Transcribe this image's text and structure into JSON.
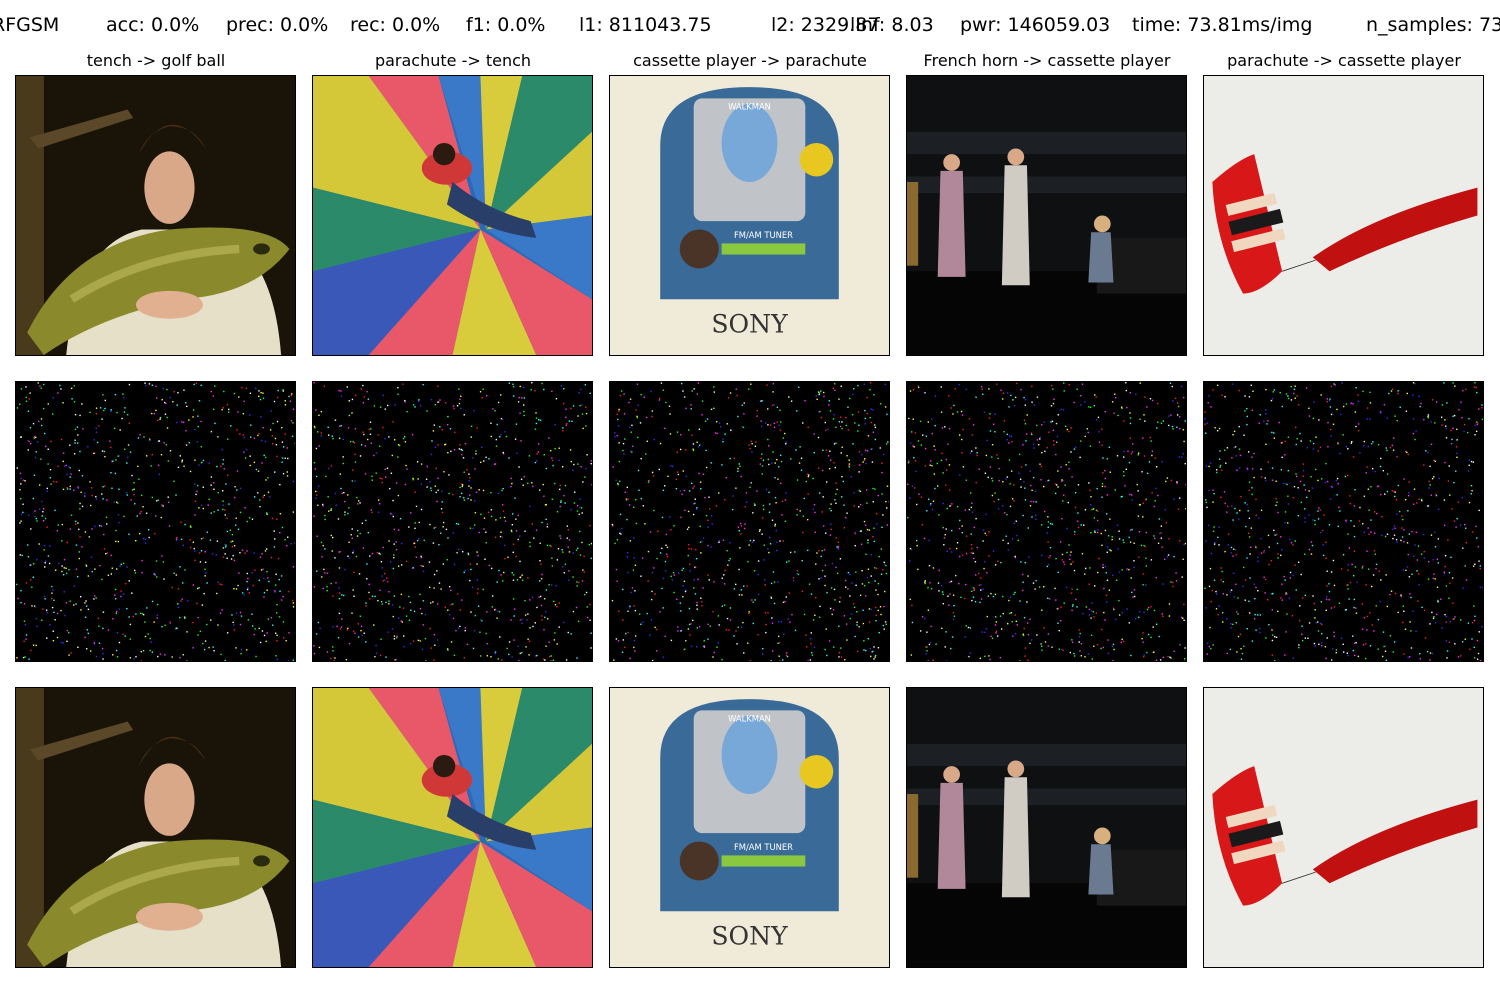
{
  "header": {
    "attack": "RFGSM",
    "acc": "acc: 0.0%",
    "prec": "prec: 0.0%",
    "rec": "rec: 0.0%",
    "f1": "f1: 0.0%",
    "l1": "l1: 811043.75",
    "l2": "l2: 2329.87",
    "linf": "lInf: 8.03",
    "pwr": "pwr: 146059.03",
    "time": "time: 73.81ms/img",
    "n_samples": "n_samples: 73"
  },
  "columns": [
    {
      "title": "tench -> golf ball",
      "subject": "man-holding-tench-fish"
    },
    {
      "title": "parachute -> tench",
      "subject": "boy-on-striped-parachute"
    },
    {
      "title": "cassette player -> parachute",
      "subject": "sony-walkman-package",
      "brand": "SONY",
      "package_top": "WALKMAN",
      "package_mid": "FM/AM TUNER"
    },
    {
      "title": "French horn -> cassette player",
      "subject": "band-on-stage"
    },
    {
      "title": "parachute -> cassette player",
      "subject": "red-parafoil-kite"
    }
  ],
  "rows": [
    "original-image",
    "perturbation",
    "adversarial-image"
  ]
}
